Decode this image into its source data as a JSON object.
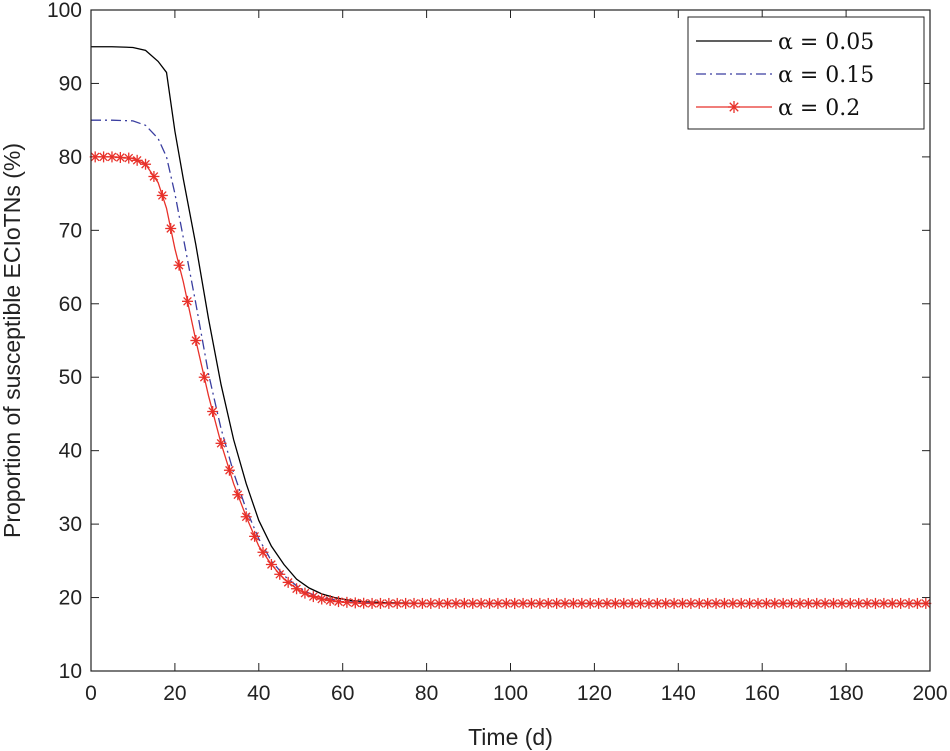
{
  "chart_data": {
    "type": "line",
    "title": "",
    "xlabel": "Time (d)",
    "ylabel": "Proportion of susceptible ECIoTNs (%)",
    "xlim": [
      0,
      200
    ],
    "ylim": [
      10,
      100
    ],
    "xticks": [
      0,
      20,
      40,
      60,
      80,
      100,
      120,
      140,
      160,
      180,
      200
    ],
    "yticks": [
      10,
      20,
      30,
      40,
      50,
      60,
      70,
      80,
      90,
      100
    ],
    "grid": false,
    "legend_position": "top-right",
    "series": [
      {
        "name": "α = 0.05",
        "style": "solid",
        "color": "#000000",
        "marker": "none",
        "x": [
          0,
          5,
          10,
          13,
          16,
          18,
          20,
          22,
          25,
          28,
          31,
          34,
          37,
          40,
          43,
          46,
          49,
          52,
          55,
          58,
          62,
          66,
          70,
          80,
          100,
          150,
          200
        ],
        "y": [
          95,
          95,
          94.9,
          94.5,
          93,
          91.5,
          83.5,
          77,
          68,
          58,
          49,
          41.5,
          35.5,
          30.5,
          27,
          24.5,
          22.5,
          21.3,
          20.5,
          20,
          19.6,
          19.4,
          19.3,
          19.2,
          19.2,
          19.2,
          19.2
        ]
      },
      {
        "name": "α = 0.15",
        "style": "dashdot",
        "color": "#3a3ea0",
        "marker": "none",
        "x": [
          0,
          5,
          10,
          13,
          16,
          18,
          20,
          22,
          25,
          28,
          31,
          34,
          37,
          40,
          43,
          46,
          49,
          52,
          55,
          58,
          62,
          66,
          70,
          80,
          100,
          150,
          200
        ],
        "y": [
          85,
          85,
          84.9,
          84.3,
          82.5,
          80,
          75,
          69,
          60,
          50.5,
          43,
          37,
          32,
          28,
          25,
          23,
          21.6,
          20.6,
          20,
          19.7,
          19.4,
          19.3,
          19.2,
          19.2,
          19.2,
          19.2,
          19.2
        ]
      },
      {
        "name": "α = 0.2",
        "style": "solid",
        "color": "#e8312a",
        "marker": "asterisk",
        "x": [
          0,
          5,
          10,
          13,
          16,
          18,
          20,
          22,
          25,
          28,
          31,
          34,
          37,
          40,
          43,
          46,
          49,
          52,
          55,
          58,
          62,
          66,
          70,
          80,
          100,
          150,
          200
        ],
        "y": [
          80,
          80,
          79.8,
          79,
          76.5,
          73,
          67.5,
          63,
          55,
          47.5,
          41,
          35.5,
          31,
          27,
          24.5,
          22.5,
          21.2,
          20.3,
          19.8,
          19.5,
          19.3,
          19.2,
          19.2,
          19.2,
          19.2,
          19.2,
          19.2
        ]
      }
    ]
  }
}
